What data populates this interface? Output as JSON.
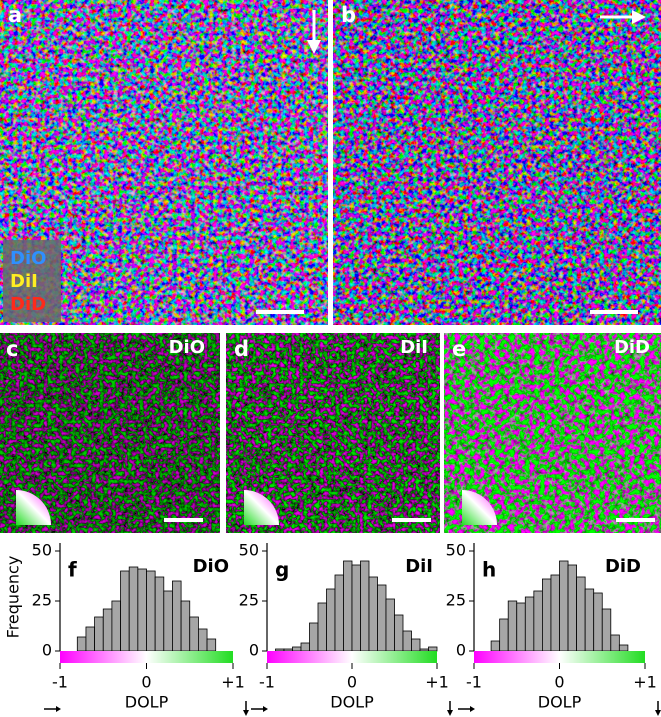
{
  "images": [
    {
      "label": "a"
    },
    {
      "label": "b"
    },
    {
      "label": "c",
      "dye": "DiO"
    },
    {
      "label": "d",
      "dye": "DiI"
    },
    {
      "label": "e",
      "dye": "DiD"
    }
  ],
  "legend": [
    {
      "name": "DiO",
      "color": "#2f8fff"
    },
    {
      "name": "DiI",
      "color": "#ffee22"
    },
    {
      "name": "DiD",
      "color": "#ff2a1a"
    }
  ],
  "chart_data": [
    {
      "type": "histogram",
      "panel": "f",
      "title": "DiO",
      "ylabel": "Frequency",
      "xlabel": "DOLP",
      "color": "#a6a6a6",
      "bins": [
        -0.8,
        -0.7,
        -0.6,
        -0.5,
        -0.4,
        -0.3,
        -0.2,
        -0.1,
        0,
        0.1,
        0.2,
        0.3,
        0.4,
        0.5,
        0.6,
        0.7,
        0.8
      ],
      "values": [
        7,
        12,
        17,
        21,
        25,
        40,
        42,
        41,
        40,
        37,
        30,
        35,
        25,
        17,
        11,
        6
      ],
      "xlim": [
        -1,
        1
      ],
      "xticks": [
        -1,
        0,
        {
          "value": 1,
          "label": "+1"
        }
      ],
      "ylim": [
        0,
        54
      ],
      "yticks": [
        0,
        25,
        50
      ]
    },
    {
      "type": "histogram",
      "panel": "g",
      "title": "DiI",
      "xlabel": "DOLP",
      "color": "#a6a6a6",
      "bins": [
        -1,
        -0.9,
        -0.8,
        -0.7,
        -0.6,
        -0.5,
        -0.4,
        -0.3,
        -0.2,
        -0.1,
        0,
        0.1,
        0.2,
        0.3,
        0.4,
        0.5,
        0.6,
        0.7,
        0.8,
        0.9,
        1
      ],
      "values": [
        0,
        1,
        1,
        2,
        4,
        14,
        24,
        31,
        38,
        45,
        43,
        45,
        37,
        33,
        26,
        18,
        10,
        6,
        1,
        2
      ],
      "xlim": [
        -1,
        1
      ],
      "xticks": [
        -1,
        0,
        {
          "value": 1,
          "label": "+1"
        }
      ],
      "ylim": [
        0,
        54
      ],
      "yticks": [
        0,
        25,
        50
      ]
    },
    {
      "type": "histogram",
      "panel": "h",
      "title": "DiD",
      "xlabel": "DOLP",
      "color": "#a6a6a6",
      "bins": [
        -0.8,
        -0.7,
        -0.6,
        -0.5,
        -0.4,
        -0.3,
        -0.2,
        -0.1,
        0,
        0.1,
        0.2,
        0.3,
        0.4,
        0.5,
        0.6,
        0.7,
        0.8
      ],
      "values": [
        5,
        16,
        25,
        24,
        27,
        30,
        36,
        38,
        45,
        43,
        37,
        31,
        29,
        21,
        8,
        3
      ],
      "xlim": [
        -1,
        1
      ],
      "xticks": [
        -1,
        0,
        {
          "value": 1,
          "label": "+1"
        }
      ],
      "ylim": [
        0,
        54
      ],
      "yticks": [
        0,
        25,
        50
      ]
    }
  ]
}
